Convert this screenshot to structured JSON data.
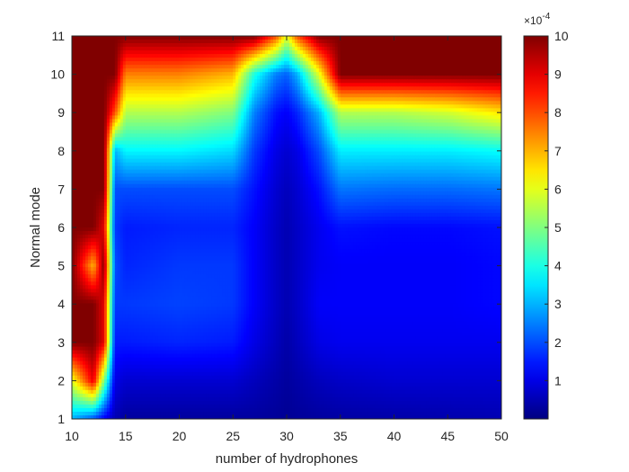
{
  "chart_data": {
    "type": "heatmap",
    "title": "",
    "xlabel": "number of hydrophones",
    "ylabel": "Normal mode",
    "xlim": [
      10,
      50
    ],
    "ylim": [
      1,
      11
    ],
    "x_ticks": [
      "10",
      "15",
      "20",
      "25",
      "30",
      "35",
      "40",
      "45",
      "50"
    ],
    "y_ticks": [
      "1",
      "2",
      "3",
      "4",
      "5",
      "6",
      "7",
      "8",
      "9",
      "10",
      "11"
    ],
    "colormap": "jet",
    "colorbar": {
      "range": [
        0,
        10
      ],
      "ticks": [
        "1",
        "2",
        "3",
        "4",
        "5",
        "6",
        "7",
        "8",
        "9",
        "10"
      ],
      "exponent_prefix": "×10",
      "exponent": "-4"
    },
    "x": [
      10,
      12,
      13,
      14,
      15,
      20,
      25,
      27,
      29,
      30,
      31,
      33,
      35,
      40,
      45,
      50
    ],
    "y": [
      1,
      2,
      3,
      4,
      5,
      6,
      7,
      8,
      9,
      10,
      11
    ],
    "z": [
      [
        3,
        2,
        1.2,
        0.5,
        0.3,
        0.3,
        0.3,
        0.3,
        0.25,
        0.2,
        0.25,
        0.3,
        0.35,
        0.4,
        0.45,
        0.5
      ],
      [
        6,
        9,
        5,
        1,
        0.8,
        0.8,
        0.8,
        0.6,
        0.4,
        0.3,
        0.4,
        0.6,
        0.7,
        0.8,
        0.8,
        0.8
      ],
      [
        10,
        10,
        9,
        1.5,
        1.5,
        1.6,
        1.5,
        1.0,
        0.6,
        0.4,
        0.6,
        1.0,
        1.1,
        1.1,
        1.1,
        1.1
      ],
      [
        10,
        10,
        9,
        1.8,
        1.8,
        1.9,
        1.8,
        1.2,
        0.7,
        0.5,
        0.7,
        1.2,
        1.2,
        1.2,
        1.2,
        1.3
      ],
      [
        10,
        7,
        10,
        2,
        1.6,
        1.8,
        1.8,
        1.2,
        0.7,
        0.5,
        0.7,
        1.1,
        1.2,
        1.2,
        1.2,
        1.3
      ],
      [
        10,
        10,
        9,
        1.8,
        1.5,
        1.6,
        1.6,
        1.2,
        0.7,
        0.5,
        0.7,
        1.1,
        1.4,
        1.3,
        1.3,
        1.4
      ],
      [
        10,
        10,
        10,
        2,
        2,
        2,
        2,
        1.4,
        0.8,
        0.6,
        0.8,
        1.4,
        2.4,
        2.3,
        2.3,
        2.4
      ],
      [
        10,
        10,
        10,
        3,
        3.7,
        3.7,
        3.4,
        1.8,
        1.0,
        0.8,
        1.0,
        2.0,
        3.6,
        3.6,
        3.6,
        3.8
      ],
      [
        10,
        10,
        10,
        8,
        5.5,
        5.5,
        5.0,
        2.5,
        1.4,
        1.2,
        1.6,
        3.0,
        5.5,
        5.5,
        5.8,
        6.5
      ],
      [
        10,
        10,
        10,
        10,
        7.5,
        7.5,
        7.0,
        4.0,
        2.5,
        2.2,
        3.0,
        6.0,
        10,
        10,
        10,
        10
      ],
      [
        10,
        10,
        10,
        10,
        10,
        10,
        10,
        10,
        8,
        6,
        8,
        10,
        10,
        10,
        10,
        10
      ]
    ]
  }
}
